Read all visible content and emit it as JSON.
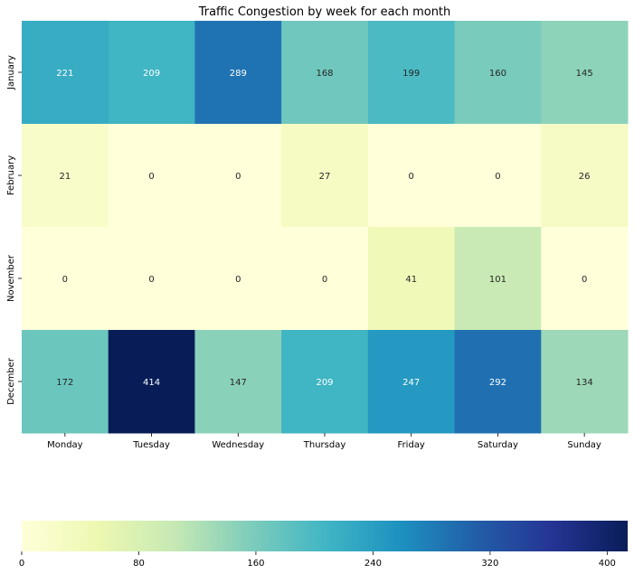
{
  "chart_data": {
    "type": "heatmap",
    "title": "Traffic Congestion by week for each month",
    "x_categories": [
      "Monday",
      "Tuesday",
      "Wednesday",
      "Thursday",
      "Friday",
      "Saturday",
      "Sunday"
    ],
    "y_categories": [
      "January",
      "February",
      "November",
      "December"
    ],
    "values": [
      [
        221,
        209,
        289,
        168,
        199,
        160,
        145
      ],
      [
        21,
        0,
        0,
        27,
        0,
        0,
        26
      ],
      [
        0,
        0,
        0,
        0,
        41,
        101,
        0
      ],
      [
        172,
        414,
        147,
        209,
        247,
        292,
        134
      ]
    ],
    "colormap": "YlGnBu",
    "colorbar": {
      "orientation": "horizontal",
      "range": [
        0,
        414
      ],
      "ticks": [
        0,
        80,
        160,
        240,
        320,
        400
      ]
    },
    "colormap_stops": [
      "#ffffd9",
      "#edf8b1",
      "#c7e9b4",
      "#7fcdbb",
      "#41b6c4",
      "#1d91c0",
      "#225ea8",
      "#253494",
      "#081d58"
    ]
  }
}
